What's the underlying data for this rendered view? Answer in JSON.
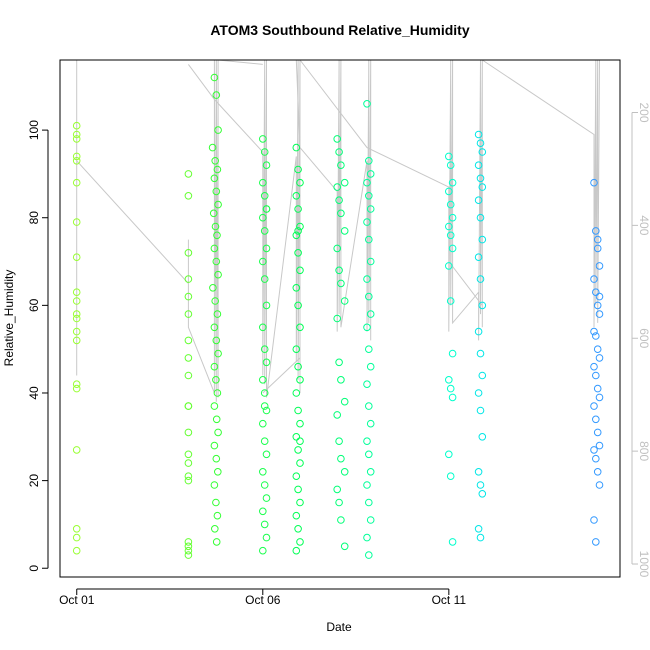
{
  "chart_data": {
    "type": "scatter",
    "title": "ATOM3 Southbound Relative_Humidity",
    "xlabel": "Date",
    "ylabel": "Relative_Humidity",
    "x_ticks": [
      "Oct 01",
      "Oct 06",
      "Oct 11"
    ],
    "x_tick_days": [
      1,
      6,
      11
    ],
    "xlim": [
      0.55,
      15.6
    ],
    "ylim": [
      -2,
      116
    ],
    "y_ticks": [
      0,
      20,
      40,
      60,
      80,
      100
    ],
    "y2_ticks": [
      200,
      400,
      600,
      800,
      1000
    ],
    "y2lim": [
      1023,
      107
    ],
    "grid": false,
    "legend": "none",
    "point_color_gradient": [
      "#99ff33",
      "#33ff33",
      "#00ff66",
      "#00ffcc",
      "#00ccff",
      "#3399ff"
    ],
    "line_color": "#c8c8c8",
    "right_axis_color": "#c0c0c0",
    "series": [
      {
        "color": "#99ff33",
        "x": [
          1.0,
          1.0,
          1.0,
          1.0,
          1.0,
          1.0,
          1.0,
          1.0,
          1.0,
          1.0,
          1.0,
          1.0,
          1.0,
          1.0,
          1.0,
          1.0,
          1.0,
          1.0,
          1.0,
          1.0
        ],
        "y": [
          101,
          99,
          94,
          93,
          88,
          79,
          71,
          63,
          61,
          58,
          57,
          54,
          52,
          42,
          41,
          27,
          9,
          7,
          4,
          98
        ]
      },
      {
        "color": "#66ff33",
        "x": [
          4.0,
          4.0,
          4.0,
          4.0,
          4.0,
          4.0,
          4.0,
          4.0,
          4.0,
          4.0,
          4.0,
          4.0,
          4.0,
          4.0,
          4.0,
          4.0,
          4.0,
          4.0,
          4.0,
          4.0
        ],
        "y": [
          90,
          85,
          72,
          66,
          62,
          52,
          48,
          44,
          37,
          31,
          26,
          24,
          21,
          20,
          6,
          5,
          4,
          3,
          37,
          58
        ]
      },
      {
        "color": "#33ff33",
        "x": [
          4.7,
          4.75,
          4.8,
          4.65,
          4.72,
          4.78,
          4.7,
          4.75,
          4.8,
          4.68,
          4.73,
          4.77,
          4.7,
          4.75,
          4.8,
          4.66,
          4.72,
          4.78,
          4.7,
          4.75,
          4.8,
          4.7,
          4.74,
          4.78,
          4.7,
          4.76,
          4.8,
          4.7,
          4.75,
          4.79,
          4.7,
          4.74,
          4.78,
          4.71,
          4.76
        ],
        "y": [
          112,
          108,
          100,
          96,
          93,
          91,
          89,
          86,
          83,
          81,
          78,
          76,
          73,
          70,
          67,
          64,
          61,
          58,
          55,
          52,
          49,
          46,
          43,
          40,
          37,
          34,
          31,
          28,
          25,
          22,
          19,
          15,
          12,
          9,
          6
        ]
      },
      {
        "color": "#1aff4d",
        "x": [
          6.0,
          6.05,
          6.1,
          6.0,
          6.05,
          6.1,
          6.0,
          6.05,
          6.1,
          6.0,
          6.05,
          6.1,
          6.0,
          6.05,
          6.1,
          6.0,
          6.05,
          6.1,
          6.0,
          6.05,
          6.1,
          6.0,
          6.05,
          6.1,
          6.0,
          6.05,
          6.1,
          6.0,
          6.05,
          6.1
        ],
        "y": [
          98,
          95,
          92,
          88,
          85,
          82,
          80,
          77,
          73,
          70,
          66,
          60,
          55,
          50,
          47,
          43,
          40,
          36,
          33,
          29,
          26,
          22,
          19,
          16,
          13,
          10,
          7,
          4,
          37,
          82
        ]
      },
      {
        "color": "#00ff55",
        "x": [
          6.9,
          6.95,
          7.0,
          6.9,
          6.95,
          7.0,
          6.9,
          6.95,
          7.0,
          6.9,
          6.95,
          7.0,
          6.9,
          6.95,
          7.0,
          6.9,
          6.95,
          7.0,
          6.9,
          6.95,
          7.0,
          6.9,
          6.95,
          7.0,
          6.9,
          6.95,
          7.0,
          6.9,
          6.95,
          7.0
        ],
        "y": [
          96,
          91,
          88,
          85,
          82,
          78,
          76,
          72,
          68,
          64,
          60,
          55,
          50,
          46,
          43,
          40,
          36,
          33,
          30,
          27,
          24,
          21,
          18,
          15,
          12,
          9,
          6,
          4,
          77,
          29
        ]
      },
      {
        "color": "#00ff77",
        "x": [
          8.0,
          8.05,
          8.1,
          8.2,
          8.0,
          8.05,
          8.1,
          8.2,
          8.0,
          8.05,
          8.1,
          8.2,
          8.0,
          8.05,
          8.1,
          8.2,
          8.0,
          8.05,
          8.1,
          8.2,
          8.0,
          8.05,
          8.1,
          8.2
        ],
        "y": [
          98,
          95,
          92,
          88,
          87,
          84,
          81,
          77,
          73,
          68,
          65,
          61,
          57,
          47,
          43,
          38,
          35,
          29,
          25,
          22,
          18,
          15,
          11,
          5
        ]
      },
      {
        "color": "#00ff99",
        "x": [
          8.8,
          8.85,
          8.9,
          8.8,
          8.85,
          8.9,
          8.8,
          8.85,
          8.9,
          8.8,
          8.85,
          8.9,
          8.8,
          8.85,
          8.9,
          8.8,
          8.85,
          8.9,
          8.8,
          8.85,
          8.9,
          8.8,
          8.85,
          8.9,
          8.8,
          8.85
        ],
        "y": [
          106,
          93,
          90,
          88,
          85,
          82,
          79,
          75,
          70,
          66,
          62,
          58,
          55,
          50,
          46,
          42,
          37,
          33,
          29,
          26,
          22,
          19,
          15,
          11,
          7,
          3
        ]
      },
      {
        "color": "#00ffcc",
        "x": [
          11.0,
          11.05,
          11.1,
          11.0,
          11.05,
          11.1,
          11.0,
          11.05,
          11.1,
          11.0,
          11.05,
          11.1,
          11.0,
          11.05,
          11.1,
          11.0,
          11.05,
          11.1
        ],
        "y": [
          94,
          92,
          88,
          86,
          83,
          80,
          78,
          76,
          73,
          69,
          61,
          49,
          43,
          41,
          39,
          26,
          21,
          6
        ]
      },
      {
        "color": "#00e6e6",
        "x": [
          11.8,
          11.85,
          11.9,
          11.8,
          11.85,
          11.9,
          11.8,
          11.85,
          11.9,
          11.8,
          11.85,
          11.9,
          11.8,
          11.85,
          11.9,
          11.8,
          11.85,
          11.9,
          11.8,
          11.85,
          11.9,
          11.8,
          11.85
        ],
        "y": [
          99,
          97,
          95,
          92,
          89,
          87,
          84,
          80,
          75,
          71,
          66,
          60,
          54,
          49,
          44,
          40,
          36,
          30,
          22,
          19,
          17,
          9,
          7
        ]
      },
      {
        "color": "#3399ff",
        "x": [
          14.9,
          14.95,
          15.0,
          15.05,
          14.9,
          14.95,
          15.0,
          15.05,
          14.9,
          14.95,
          15.0,
          15.05,
          14.9,
          14.95,
          15.0,
          15.05,
          14.9,
          14.95,
          15.0,
          15.05,
          14.9,
          14.95,
          15.0,
          15.05,
          14.9,
          14.95,
          15.0,
          15.05
        ],
        "y": [
          88,
          77,
          75,
          69,
          66,
          63,
          60,
          58,
          54,
          53,
          50,
          48,
          46,
          44,
          41,
          39,
          37,
          34,
          31,
          28,
          27,
          25,
          22,
          19,
          11,
          6,
          73,
          62
        ]
      }
    ],
    "line_paths": [
      {
        "x": [
          1.0,
          1.0,
          1.0,
          1.0,
          1.0,
          4.0,
          4.0,
          4.0,
          4.7,
          4.7,
          4.75,
          4.75,
          4.8,
          4.8,
          6.0
        ],
        "y": [
          116,
          44,
          116,
          52,
          93,
          65,
          75,
          55,
          40,
          116,
          38,
          116,
          39,
          116,
          115
        ]
      },
      {
        "x": [
          4.0,
          4.7,
          6.0,
          6.0,
          6.05,
          6.05,
          6.1,
          6.1,
          6.9,
          6.9,
          6.95,
          6.95,
          7.0,
          7.0
        ],
        "y": [
          115,
          107,
          95,
          44,
          116,
          42,
          116,
          39,
          94,
          47,
          116,
          43,
          116,
          40
        ]
      },
      {
        "x": [
          6.1,
          6.9,
          7.0,
          8.0,
          8.0,
          8.05,
          8.05,
          8.1,
          8.1,
          8.8,
          8.8,
          8.85,
          8.85,
          8.9,
          8.9
        ],
        "y": [
          116,
          116,
          96,
          86,
          54,
          116,
          58,
          116,
          55,
          93,
          54,
          116,
          56,
          116,
          52
        ]
      },
      {
        "x": [
          7.0,
          8.8,
          11.0,
          11.0,
          11.05,
          11.05,
          11.1,
          11.1,
          11.8,
          11.8,
          11.85,
          11.85,
          11.9,
          11.9
        ],
        "y": [
          116,
          96,
          87,
          54,
          116,
          60,
          116,
          56,
          63,
          52,
          116,
          58,
          116,
          55
        ]
      },
      {
        "x": [
          11.9,
          14.9,
          14.9,
          14.95,
          14.95,
          15.0,
          15.0,
          15.05
        ],
        "y": [
          116,
          99,
          55,
          116,
          60,
          116,
          56,
          116
        ]
      },
      {
        "x": [
          6.0,
          7.0
        ],
        "y": [
          40,
          48
        ]
      },
      {
        "x": [
          11.0,
          11.9
        ],
        "y": [
          70,
          60
        ]
      }
    ]
  }
}
